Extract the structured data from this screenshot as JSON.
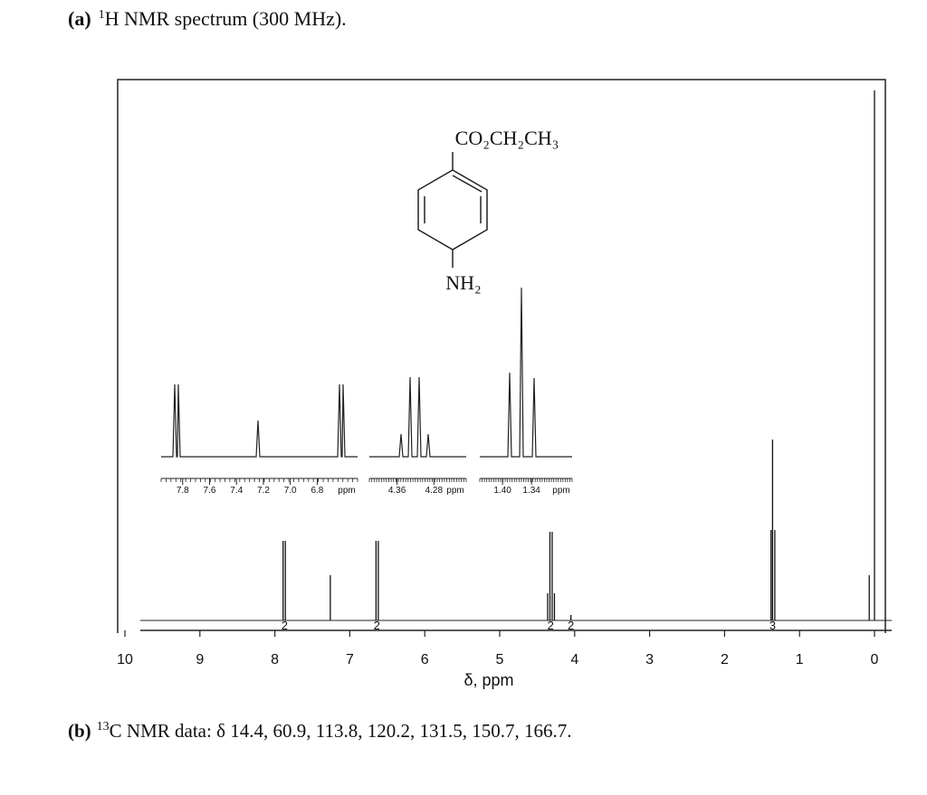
{
  "header": {
    "label": "(a)",
    "sup": "1",
    "title": "H NMR spectrum (300 MHz)."
  },
  "structure": {
    "top": "CO₂CH₂CH₃",
    "bottom": "NH₂"
  },
  "chart_data": {
    "type": "spectrum",
    "xlabel": "δ, ppm",
    "xlim": [
      10,
      0
    ],
    "xticks": [
      10,
      9,
      8,
      7,
      6,
      5,
      4,
      3,
      2,
      1,
      0
    ],
    "x": [
      7.89,
      7.86,
      7.26,
      6.65,
      6.62,
      4.36,
      4.33,
      4.3,
      4.27,
      4.05,
      1.38,
      1.36,
      1.33,
      0.07,
      0.0
    ],
    "values": [
      88,
      88,
      50,
      88,
      88,
      30,
      98,
      98,
      30,
      6,
      100,
      200,
      100,
      50,
      586
    ],
    "integral_ppm": [
      7.87,
      6.64,
      4.32,
      4.05,
      1.36
    ],
    "integrals": [
      2,
      2,
      2,
      2,
      3
    ],
    "insets": [
      {
        "xlim": [
          7.96,
          6.5
        ],
        "xticks": [
          7.8,
          7.6,
          7.4,
          7.2,
          {
            "value": 7,
            "label": "7.0"
          },
          6.8
        ],
        "unit": "ppm"
      },
      {
        "xlim": [
          4.42,
          4.21
        ],
        "xticks": [
          4.36,
          4.28
        ],
        "unit": "ppm"
      },
      {
        "xlim": [
          1.447,
          1.256
        ],
        "xticks": [
          {
            "value": 1.4,
            "label": "1.40"
          },
          1.34
        ],
        "unit": "ppm"
      }
    ]
  },
  "footer": {
    "label": "(b)",
    "sup": "13",
    "text": "C NMR data: δ 14.4, 60.9, 113.8, 120.2, 131.5, 150.7, 166.7."
  }
}
